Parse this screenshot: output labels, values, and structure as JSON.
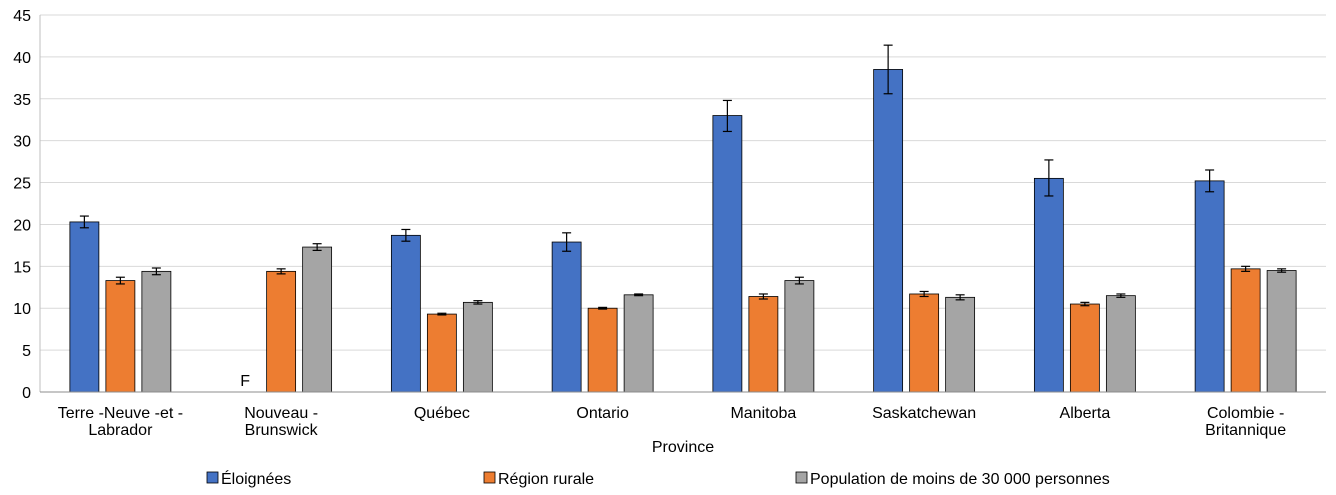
{
  "chart_data": {
    "type": "bar",
    "title": "",
    "xlabel": "Province",
    "ylabel": "",
    "ylim": [
      0,
      45
    ],
    "yticks": [
      0,
      5,
      10,
      15,
      20,
      25,
      30,
      35,
      40,
      45
    ],
    "grid": true,
    "legend_position": "bottom",
    "categories": [
      [
        "Terre -Neuve -et -",
        "Labrador"
      ],
      [
        "Nouveau -",
        "Brunswick"
      ],
      [
        "Québec"
      ],
      [
        "Ontario"
      ],
      [
        "Manitoba"
      ],
      [
        "Saskatchewan"
      ],
      [
        "Alberta"
      ],
      [
        "Colombie -",
        "Britannique"
      ]
    ],
    "series": [
      {
        "name": "Éloignées",
        "color": "#4472C4",
        "values": [
          20.3,
          null,
          18.7,
          17.9,
          33.0,
          38.5,
          25.5,
          25.2
        ],
        "error_low": [
          19.6,
          null,
          18.0,
          16.8,
          31.1,
          35.6,
          23.4,
          23.9
        ],
        "error_high": [
          21.0,
          null,
          19.4,
          19.0,
          34.8,
          41.4,
          27.7,
          26.5
        ],
        "labels": [
          "",
          "F",
          "",
          "",
          "",
          "",
          "",
          ""
        ]
      },
      {
        "name": "Région rurale",
        "color": "#ED7D31",
        "values": [
          13.3,
          14.4,
          9.3,
          10.0,
          11.4,
          11.7,
          10.5,
          14.7
        ],
        "error_low": [
          12.9,
          14.1,
          9.2,
          9.9,
          11.1,
          11.4,
          10.3,
          14.4
        ],
        "error_high": [
          13.7,
          14.7,
          9.4,
          10.1,
          11.7,
          12.0,
          10.7,
          15.0
        ]
      },
      {
        "name": "Population de moins de 30 000 personnes",
        "color": "#A5A5A5",
        "values": [
          14.4,
          17.3,
          10.7,
          11.6,
          13.3,
          11.3,
          11.5,
          14.5
        ],
        "error_low": [
          14.0,
          16.9,
          10.5,
          11.5,
          12.9,
          11.0,
          11.3,
          14.3
        ],
        "error_high": [
          14.8,
          17.7,
          10.9,
          11.7,
          13.7,
          11.6,
          11.7,
          14.7
        ]
      }
    ]
  }
}
